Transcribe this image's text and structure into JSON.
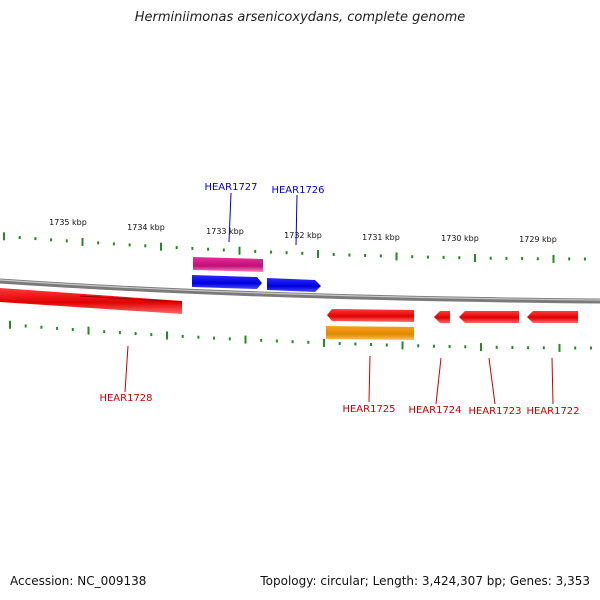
{
  "header": {
    "title": "Herminiimonas arsenicoxydans, complete genome"
  },
  "footer": {
    "accession": "Accession: NC_009138",
    "topology": "Topology: circular; Length: 3,424,307 bp; Genes: 3,353"
  },
  "scale": {
    "tick_labels": [
      "1735 kbp",
      "1734 kbp",
      "1733 kbp",
      "1732 kbp",
      "1731 kbp",
      "1730 kbp",
      "1729 kbp"
    ],
    "tick_color": "#228B22"
  },
  "genes": [
    {
      "name": "HEAR1727",
      "strand": "forward",
      "color": "#0000CC"
    },
    {
      "name": "HEAR1726",
      "strand": "forward",
      "color": "#0000CC"
    },
    {
      "name": "HEAR1728",
      "strand": "reverse",
      "color": "#CC0000"
    },
    {
      "name": "HEAR1725",
      "strand": "reverse",
      "color": "#CC0000"
    },
    {
      "name": "HEAR1724",
      "strand": "reverse",
      "color": "#CC0000"
    },
    {
      "name": "HEAR1723",
      "strand": "reverse",
      "color": "#CC0000"
    },
    {
      "name": "HEAR1722",
      "strand": "reverse",
      "color": "#CC0000"
    }
  ],
  "feature_colors": {
    "forward_cds": "#0000EE",
    "reverse_cds": "#EE0000",
    "forward_feature": "#E0409A",
    "reverse_feature": "#F39A14",
    "backbone": "#808080"
  }
}
